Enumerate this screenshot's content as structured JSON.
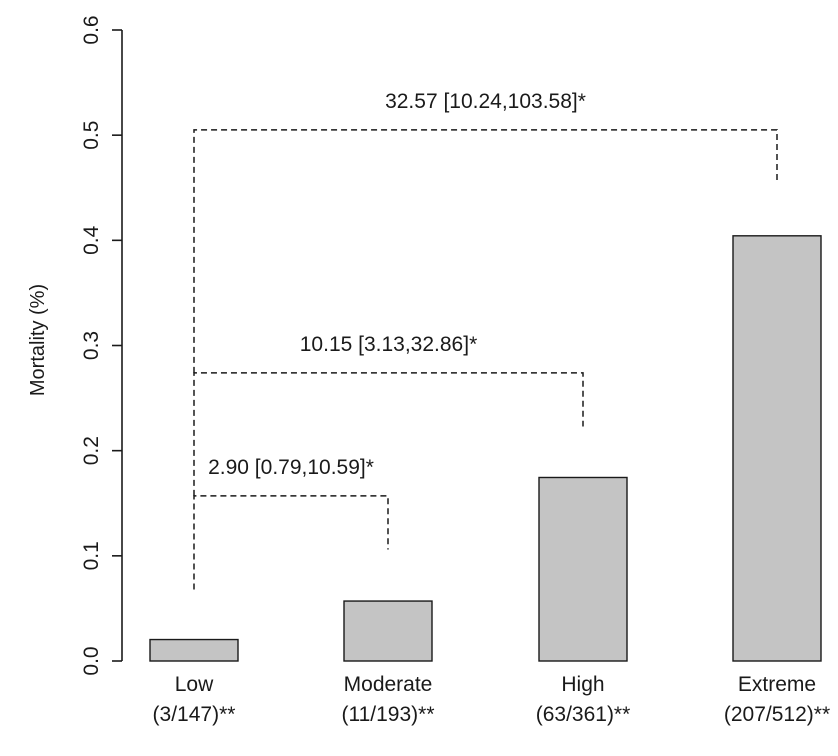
{
  "chart_data": {
    "type": "bar",
    "title": "",
    "xlabel": "",
    "ylabel": "Mortality (%)",
    "ylim": [
      0,
      0.6
    ],
    "yticks": [
      "0.0",
      "0.1",
      "0.2",
      "0.3",
      "0.4",
      "0.5",
      "0.6"
    ],
    "categories": [
      {
        "name": "Low",
        "sub": "(3/147)**"
      },
      {
        "name": "Moderate",
        "sub": "(11/193)**"
      },
      {
        "name": "High",
        "sub": "(63/361)**"
      },
      {
        "name": "Extreme",
        "sub": "(207/512)**"
      }
    ],
    "values": [
      0.0204,
      0.057,
      0.1745,
      0.4043
    ],
    "bar_color": "#c4c4c4",
    "grid": false,
    "comparisons": [
      {
        "from": 0,
        "to": 1,
        "label": "2.90 [0.79,10.59]*",
        "bracket_y": 0.157,
        "start_y": 0.068,
        "end_y": 0.106
      },
      {
        "from": 0,
        "to": 2,
        "label": "10.15 [3.13,32.86]*",
        "bracket_y": 0.274,
        "start_y": 0.157,
        "end_y": 0.223
      },
      {
        "from": 0,
        "to": 3,
        "label": "32.57 [10.24,103.58]*",
        "bracket_y": 0.505,
        "start_y": 0.274,
        "end_y": 0.455
      }
    ]
  }
}
